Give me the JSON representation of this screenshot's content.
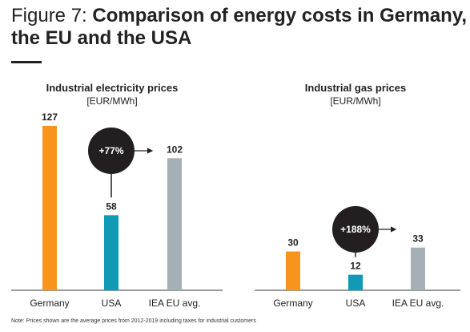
{
  "figure": {
    "prefix": "Figure 7: ",
    "title": "Comparison of energy costs in Germany, the EU and the USA",
    "note": "Note: Prices shown are the average prices from 2012-2019 including taxes for industrial customers"
  },
  "colors": {
    "germany": "#F7941D",
    "usa": "#0F9AB5",
    "eu": "#A4AFB6",
    "bubble": "#231F20"
  },
  "chart_data": [
    {
      "type": "bar",
      "title": "Industrial electricity prices",
      "unit": "[EUR/MWh]",
      "categories": [
        "Germany",
        "USA",
        "IEA EU avg."
      ],
      "values": [
        127,
        58,
        102
      ],
      "annotation": "+77%",
      "ylim": [
        0,
        135
      ]
    },
    {
      "type": "bar",
      "title": "Industrial gas prices",
      "unit": "[EUR/MWh]",
      "categories": [
        "Germany",
        "USA",
        "IEA EU avg."
      ],
      "values": [
        30,
        12,
        33
      ],
      "annotation": "+188%",
      "ylim": [
        0,
        135
      ]
    }
  ]
}
